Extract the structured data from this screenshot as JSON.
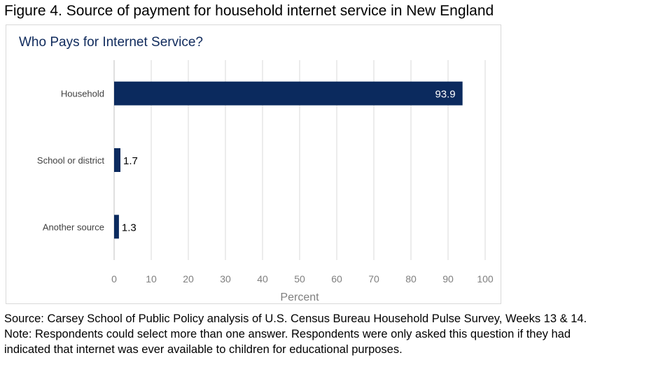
{
  "figure_title": "Figure 4. Source of payment for household internet service in New England",
  "chart_data": {
    "type": "bar",
    "orientation": "horizontal",
    "title": "Who Pays for Internet Service?",
    "categories": [
      "Household",
      "School or district",
      "Another source"
    ],
    "values": [
      93.9,
      1.7,
      1.3
    ],
    "data_labels": [
      "93.9",
      "1.7",
      "1.3"
    ],
    "xlabel": "Percent",
    "ylabel": "",
    "xlim": [
      0,
      100
    ],
    "xticks": [
      0,
      10,
      20,
      30,
      40,
      50,
      60,
      70,
      80,
      90,
      100
    ],
    "grid": "vertical",
    "legend": "none",
    "bar_color": "#0b2a5e"
  },
  "footnote": {
    "source": "Source: Carsey School of Public Policy analysis of U.S. Census Bureau Household Pulse Survey, Weeks 13 & 14.",
    "note_line1": "Note: Respondents could select more than one answer. Respondents were only asked this question if they had",
    "note_line2": "indicated that internet was ever available to children for educational purposes."
  }
}
